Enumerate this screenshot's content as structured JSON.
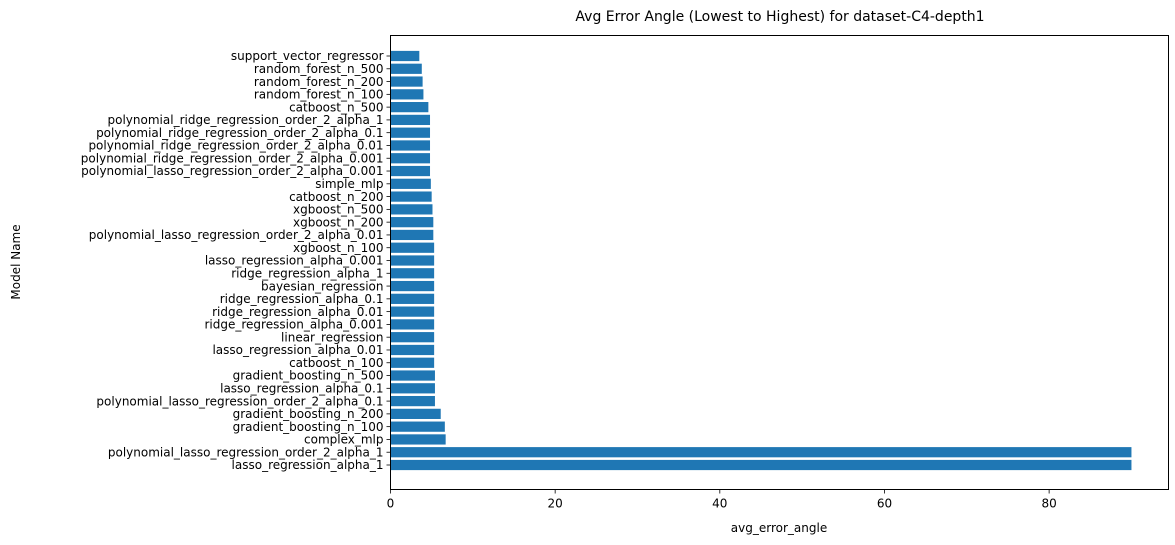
{
  "chart_data": {
    "type": "bar",
    "orientation": "horizontal",
    "title": "Avg Error Angle (Lowest to Highest) for dataset-C4-depth1",
    "xlabel": "avg_error_angle",
    "ylabel": "Model Name",
    "xlim": [
      0,
      94.5
    ],
    "xticks": [
      0,
      20,
      40,
      60,
      80
    ],
    "bar_color": "#1f77b4",
    "grid": false,
    "categories": [
      "support_vector_regressor",
      "random_forest_n_500",
      "random_forest_n_200",
      "random_forest_n_100",
      "catboost_n_500",
      "polynomial_ridge_regression_order_2_alpha_1",
      "polynomial_ridge_regression_order_2_alpha_0.1",
      "polynomial_ridge_regression_order_2_alpha_0.01",
      "polynomial_ridge_regression_order_2_alpha_0.001",
      "polynomial_lasso_regression_order_2_alpha_0.001",
      "simple_mlp",
      "catboost_n_200",
      "xgboost_n_500",
      "xgboost_n_200",
      "polynomial_lasso_regression_order_2_alpha_0.01",
      "xgboost_n_100",
      "lasso_regression_alpha_0.001",
      "ridge_regression_alpha_1",
      "bayesian_regression",
      "ridge_regression_alpha_0.1",
      "ridge_regression_alpha_0.01",
      "ridge_regression_alpha_0.001",
      "linear_regression",
      "lasso_regression_alpha_0.01",
      "catboost_n_100",
      "gradient_boosting_n_500",
      "lasso_regression_alpha_0.1",
      "polynomial_lasso_regression_order_2_alpha_0.1",
      "gradient_boosting_n_200",
      "gradient_boosting_n_100",
      "complex_mlp",
      "polynomial_lasso_regression_order_2_alpha_1",
      "lasso_regression_alpha_1"
    ],
    "values": [
      3.5,
      3.8,
      3.9,
      4.0,
      4.6,
      4.8,
      4.8,
      4.8,
      4.8,
      4.8,
      4.9,
      5.0,
      5.1,
      5.2,
      5.2,
      5.3,
      5.3,
      5.3,
      5.3,
      5.3,
      5.3,
      5.3,
      5.3,
      5.3,
      5.3,
      5.4,
      5.4,
      5.4,
      6.1,
      6.6,
      6.7,
      90.0,
      90.0
    ]
  }
}
